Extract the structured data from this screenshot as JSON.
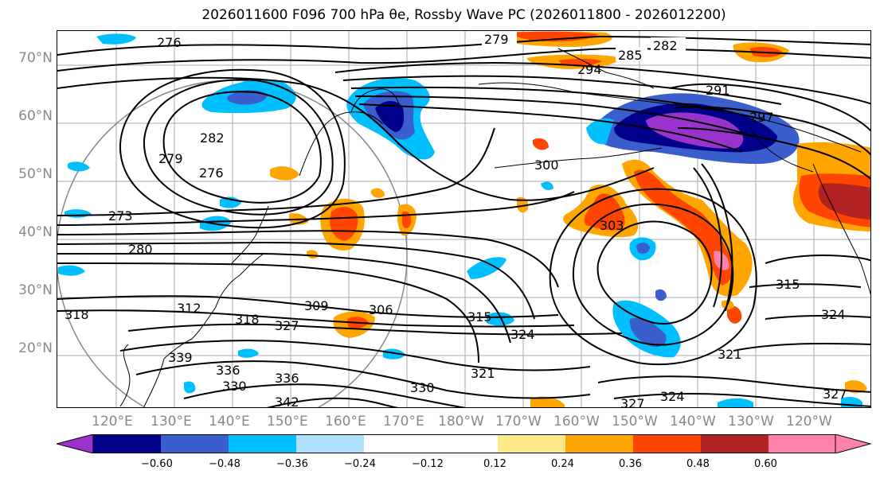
{
  "title": "2026011600 F096 700 hPa θe, Rossby Wave PC (2026011800 - 2026012200)",
  "lat_labels": [
    "70°N",
    "60°N",
    "50°N",
    "40°N",
    "30°N",
    "20°N"
  ],
  "lon_labels": [
    "120°E",
    "130°E",
    "140°E",
    "150°E",
    "160°E",
    "170°E",
    "180°W",
    "170°W",
    "160°W",
    "150°W",
    "140°W",
    "130°W",
    "120°W"
  ],
  "contour_labels": [
    "279",
    "282",
    "285",
    "294",
    "291",
    "297",
    "300",
    "303",
    "315",
    "324",
    "321",
    "327",
    "324",
    "327",
    "321",
    "324",
    "330",
    "336",
    "339",
    "342",
    "336",
    "330",
    "312",
    "318",
    "327",
    "309",
    "306",
    "315",
    "318",
    "273",
    "276",
    "279",
    "282",
    "276",
    "280"
  ],
  "colorbar": {
    "ticks": [
      "−0.60",
      "−0.48",
      "−0.36",
      "−0.24",
      "−0.12",
      "0.12",
      "0.24",
      "0.36",
      "0.48",
      "0.60"
    ],
    "colors": [
      "#9a32cd",
      "#00008b",
      "#3a5fcd",
      "#00bfff",
      "#b0e2ff",
      "#ffffff",
      "#fde98a",
      "#ffa500",
      "#ff4500",
      "#b22222",
      "#ff82ab"
    ]
  }
}
